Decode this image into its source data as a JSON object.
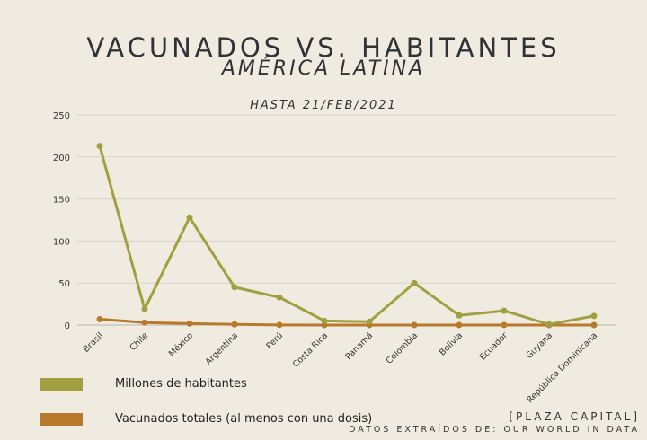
{
  "chart_data": {
    "type": "line",
    "title": "VACUNADOS VS. HABITANTES",
    "subtitle": "AMÉRICA LATINA",
    "date_note": "HASTA 21/FEB/2021",
    "categories": [
      "Brasil",
      "Chile",
      "México",
      "Argentina",
      "Perú",
      "Costa Rica",
      "Panamá",
      "Colombia",
      "Bolivia",
      "Ecuador",
      "Guyana",
      "República Dominicana"
    ],
    "series": [
      {
        "name": "Millones de habitantes",
        "color": "#a0a040",
        "values": [
          213,
          19,
          128,
          45,
          33,
          5,
          4,
          50,
          11.5,
          17,
          0.8,
          10.8
        ]
      },
      {
        "name": "Vacunados totales (al menos con una dosis)",
        "color": "#b8792a",
        "values": [
          7,
          3,
          1.8,
          0.8,
          0.2,
          0.05,
          0.05,
          0.05,
          0.05,
          0.05,
          0,
          0.05
        ]
      }
    ],
    "ylim": [
      0,
      250
    ],
    "yticks": [
      0,
      50,
      100,
      150,
      200,
      250
    ],
    "grid": true,
    "legend": "bottom-left"
  },
  "credits": {
    "brand": "[PLAZA CAPITAL]",
    "source": "DATOS EXTRAÍDOS DE: OUR WORLD IN DATA"
  }
}
